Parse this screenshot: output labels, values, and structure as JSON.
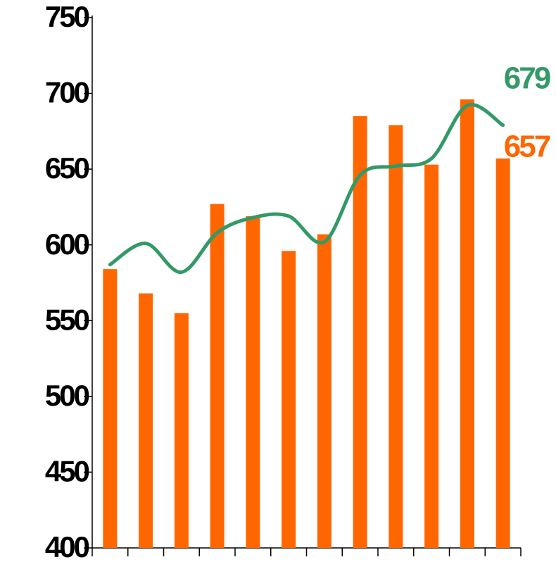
{
  "chart_data": {
    "type": "bar",
    "categories": [
      null,
      null,
      null,
      null,
      null,
      null,
      null,
      null,
      null,
      null,
      null,
      null
    ],
    "series": [
      {
        "type": "bar",
        "color": "#ff6600",
        "values": [
          584,
          568,
          555,
          627,
          619,
          596,
          607,
          685,
          679,
          653,
          696,
          657
        ]
      },
      {
        "type": "line",
        "color": "#339966",
        "values": [
          587,
          601,
          582,
          608,
          618,
          619,
          602,
          646,
          652,
          657,
          692,
          679
        ]
      }
    ],
    "ylim": [
      400,
      750
    ],
    "yticks": [
      400,
      450,
      500,
      550,
      600,
      650,
      700,
      750
    ],
    "grid": false
  }
}
